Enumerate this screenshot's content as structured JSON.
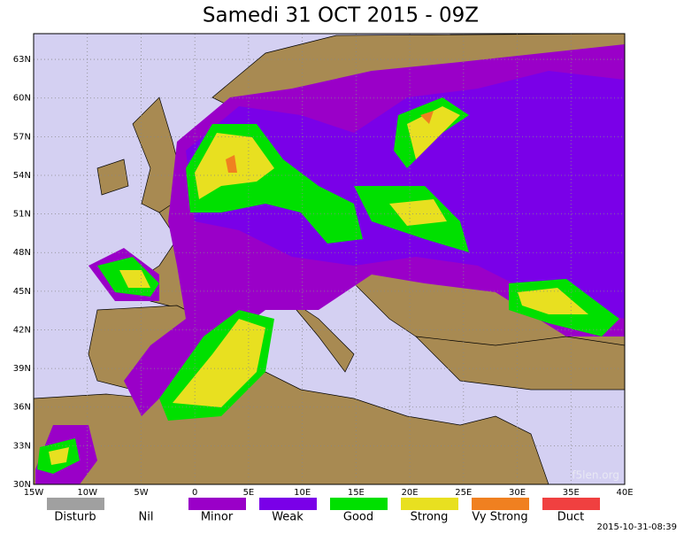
{
  "title": "Samedi 31 OCT 2015 - 09Z",
  "map": {
    "xlim": [
      -15,
      40
    ],
    "ylim": [
      30,
      65
    ],
    "xticks": [
      {
        "value": -15,
        "label": "15W"
      },
      {
        "value": -10,
        "label": "10W"
      },
      {
        "value": -5,
        "label": "5W"
      },
      0,
      {
        "value": 5,
        "label": "5E"
      },
      {
        "value": 10,
        "label": "10E"
      },
      {
        "value": 15,
        "label": "15E"
      },
      {
        "value": 20,
        "label": "20E"
      },
      {
        "value": 25,
        "label": "25E"
      },
      {
        "value": 30,
        "label": "30E"
      },
      {
        "value": 35,
        "label": "35E"
      },
      {
        "value": 40,
        "label": "40E"
      }
    ],
    "yticks": [
      {
        "value": 30,
        "label": "30N"
      },
      {
        "value": 33,
        "label": "33N"
      },
      {
        "value": 36,
        "label": "36N"
      },
      {
        "value": 39,
        "label": "39N"
      },
      {
        "value": 42,
        "label": "42N"
      },
      {
        "value": 45,
        "label": "45N"
      },
      {
        "value": 48,
        "label": "48N"
      },
      {
        "value": 51,
        "label": "51N"
      },
      {
        "value": 54,
        "label": "54N"
      },
      {
        "value": 57,
        "label": "57N"
      },
      {
        "value": 60,
        "label": "60N"
      },
      {
        "value": 63,
        "label": "63N"
      }
    ],
    "grid": true
  },
  "legend": [
    {
      "label": "Disturb",
      "color": "#a0a0a0"
    },
    {
      "label": "Nil",
      "color": "#ffffff"
    },
    {
      "label": "Minor",
      "color": "#9a00c8"
    },
    {
      "label": "Weak",
      "color": "#7a00e8"
    },
    {
      "label": "Good",
      "color": "#00e000"
    },
    {
      "label": "Strong",
      "color": "#e8e020"
    },
    {
      "label": "Vy Strong",
      "color": "#f08020"
    },
    {
      "label": "Duct",
      "color": "#f04040"
    }
  ],
  "watermark": "f5len.org",
  "timestamp": "2015-10-31-08:39"
}
